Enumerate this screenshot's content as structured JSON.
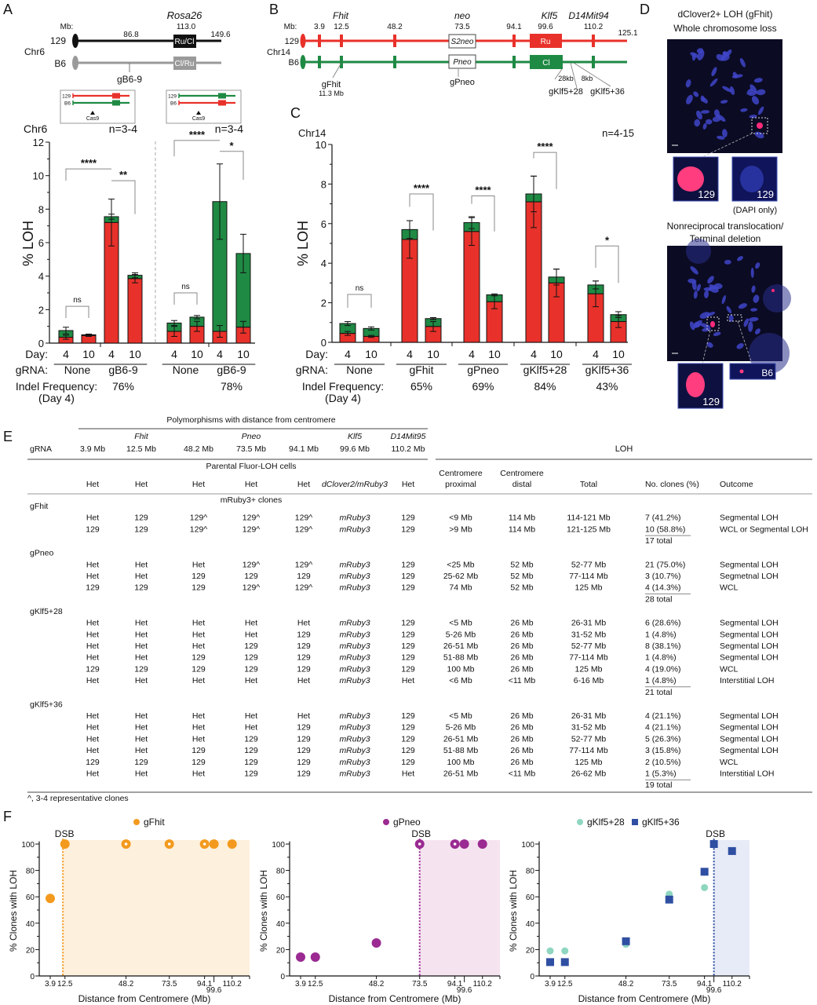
{
  "panel_labels": [
    "A",
    "B",
    "C",
    "D",
    "E",
    "F"
  ],
  "colors": {
    "red": "#e8312a",
    "green": "#1f8a44",
    "grey": "#9a9a9a",
    "gFhit": "#f39a1e",
    "gPneo": "#9b2a92",
    "gKlf5_28": "#8fd6c0",
    "gKlf5_36": "#2f4fa2"
  },
  "panel_a_diagram": {
    "gene": "Rosa26",
    "gene_pos": "113.0",
    "mb_label": "Mb:",
    "chr": "Chr6",
    "alleles": [
      "129",
      "B6"
    ],
    "pos_labels": [
      "86.8",
      "149.6"
    ],
    "boxes": [
      "Ru/Cl",
      "Cl/Ru"
    ],
    "grna": "gB6-9",
    "insets": [
      {
        "alleles": [
          "129",
          "B6"
        ],
        "top_color": "red",
        "bottom_color": "green",
        "cut_label": "Cas9"
      },
      {
        "alleles": [
          "129",
          "B6"
        ],
        "top_color": "green",
        "bottom_color": "red",
        "cut_label": "Cas9"
      }
    ]
  },
  "panel_b_diagram": {
    "genes": [
      "Fhit",
      "neo",
      "Klf5",
      "D14Mit94"
    ],
    "mb_label": "Mb:",
    "positions": [
      "3.9",
      "12.5",
      "48.2",
      "73.5",
      "94.1",
      "99.6",
      "110.2",
      "125.1"
    ],
    "chr": "Chr14",
    "alleles": [
      "129",
      "B6"
    ],
    "boxes": {
      "neo_129": "S2neo",
      "neo_b6": "Pneo",
      "klf5_129": "Ru",
      "klf5_b6": "Cl"
    },
    "grnas": {
      "gfhit": "gFhit",
      "gfhit_pos": "11.3 Mb",
      "gpneo": "gPneo",
      "gklf28": "gKlf5+28",
      "gklf36": "gKlf5+36"
    },
    "distances": [
      "28kb",
      "8kb"
    ]
  },
  "panel_d": {
    "title1": "dClover2+ LOH (gFhit)",
    "title2": "Whole chromosome loss",
    "inset_labels_1": [
      "129",
      "129"
    ],
    "dapi_note": "(DAPI only)",
    "title3": "Nonreciprocal translocation/",
    "title4": "Terminal deletion",
    "inset_labels_2": [
      "129",
      "B6"
    ]
  },
  "chart_data": [
    {
      "id": "A",
      "type": "bar",
      "stacked": true,
      "title": "Chr6",
      "ylabel": "% LOH",
      "ylim": [
        0,
        12
      ],
      "yticks": [
        0,
        2,
        4,
        6,
        8,
        10,
        12
      ],
      "grid": false,
      "n_labels": [
        "n=3-4",
        "n=3-4"
      ],
      "row_labels": {
        "day": "Day:",
        "grna": "gRNA:",
        "indel": "Indel Frequency:",
        "indel_sub": "(Day 4)"
      },
      "bars": [
        {
          "day": "4",
          "red": 0.35,
          "red_err": 0.12,
          "total": 0.75,
          "total_err": 0.2
        },
        {
          "day": "10",
          "red": 0.45,
          "red_err": 0.05,
          "total": 0.5,
          "total_err": 0.04
        },
        {
          "day": "4",
          "red": 7.2,
          "red_err": 1.4,
          "total": 7.55,
          "total_err": 0.15
        },
        {
          "day": "10",
          "red": 3.85,
          "red_err": 0.25,
          "total": 4.05,
          "total_err": 0.15
        },
        {
          "day": "4",
          "red": 0.7,
          "red_err": 0.3,
          "total": 1.2,
          "total_err": 0.15
        },
        {
          "day": "10",
          "red": 1.0,
          "red_err": 0.3,
          "total": 1.55,
          "total_err": 0.1
        },
        {
          "day": "4",
          "red": 0.7,
          "red_err": 0.35,
          "total": 8.45,
          "total_err": 2.25
        },
        {
          "day": "10",
          "red": 0.95,
          "red_err": 0.35,
          "total": 5.35,
          "total_err": 1.15
        }
      ],
      "groups": [
        {
          "gRNA": "None",
          "bars": [
            0,
            1
          ],
          "indel": ""
        },
        {
          "gRNA": "gB6-9",
          "bars": [
            2,
            3
          ],
          "indel": "76%"
        },
        {
          "gRNA": "None",
          "bars": [
            4,
            5
          ],
          "indel": ""
        },
        {
          "gRNA": "gB6-9",
          "bars": [
            6,
            7
          ],
          "indel": "78%"
        }
      ],
      "brackets": [
        {
          "a": 0,
          "b": 1,
          "top": 2.2,
          "l": 1.5,
          "r": 1.5,
          "label": "ns"
        },
        {
          "a": 0,
          "b": 2,
          "top": 10.4,
          "l": 9.7,
          "r": 10.4,
          "label": "****"
        },
        {
          "a": 2,
          "b": 3,
          "top": 9.7,
          "l": 9.7,
          "r": 7.7,
          "label": "**"
        },
        {
          "a": 4,
          "b": 5,
          "top": 3.0,
          "l": 2.3,
          "r": 2.3,
          "label": "ns"
        },
        {
          "a": 4,
          "b": 6,
          "top": 12.1,
          "l": 11.15,
          "r": 12.1,
          "label": "****"
        },
        {
          "a": 6,
          "b": 7,
          "top": 11.45,
          "l": 11.45,
          "r": 9.75,
          "label": "*"
        }
      ]
    },
    {
      "id": "C",
      "type": "bar",
      "stacked": true,
      "title": "Chr14",
      "ylabel": "% LOH",
      "ylim": [
        0,
        10
      ],
      "yticks": [
        0,
        2,
        4,
        6,
        8,
        10
      ],
      "grid": false,
      "n_labels": [
        "n=4-15"
      ],
      "row_labels": {
        "day": "Day:",
        "grna": "gRNA:",
        "indel": "Indel Frequency:",
        "indel_sub": "(Day 4)"
      },
      "bars": [
        {
          "day": "4",
          "red": 0.45,
          "red_err": 0.1,
          "total": 0.95,
          "total_err": 0.1
        },
        {
          "day": "10",
          "red": 0.3,
          "red_err": 0.05,
          "total": 0.7,
          "total_err": 0.08
        },
        {
          "day": "4",
          "red": 5.2,
          "red_err": 0.95,
          "total": 5.7,
          "total_err": 0.45
        },
        {
          "day": "10",
          "red": 0.8,
          "red_err": 0.25,
          "total": 1.2,
          "total_err": 0.05
        },
        {
          "day": "4",
          "red": 5.6,
          "red_err": 0.7,
          "total": 6.05,
          "total_err": 0.3
        },
        {
          "day": "10",
          "red": 2.05,
          "red_err": 0.35,
          "total": 2.4,
          "total_err": 0.05
        },
        {
          "day": "4",
          "red": 7.1,
          "red_err": 1.3,
          "total": 7.5,
          "total_err": 0.9
        },
        {
          "day": "10",
          "red": 3.0,
          "red_err": 0.7,
          "total": 3.3,
          "total_err": 0.4
        },
        {
          "day": "4",
          "red": 2.45,
          "red_err": 0.65,
          "total": 2.9,
          "total_err": 0.2
        },
        {
          "day": "10",
          "red": 1.05,
          "red_err": 0.3,
          "total": 1.4,
          "total_err": 0.15
        }
      ],
      "groups": [
        {
          "gRNA": "None",
          "bars": [
            0,
            1
          ],
          "indel": ""
        },
        {
          "gRNA": "gFhit",
          "bars": [
            2,
            3
          ],
          "indel": "65%"
        },
        {
          "gRNA": "gPneo",
          "bars": [
            4,
            5
          ],
          "indel": "69%"
        },
        {
          "gRNA": "gKlf5+28",
          "bars": [
            6,
            7
          ],
          "indel": "84%"
        },
        {
          "gRNA": "gKlf5+36",
          "bars": [
            8,
            9
          ],
          "indel": "43%"
        }
      ],
      "brackets": [
        {
          "a": 0,
          "b": 1,
          "top": 2.42,
          "l": 1.75,
          "r": 1.75,
          "label": "ns"
        },
        {
          "a": 2,
          "b": 3,
          "top": 7.5,
          "l": 6.85,
          "r": 5.65,
          "label": "****"
        },
        {
          "a": 4,
          "b": 5,
          "top": 7.4,
          "l": 7.0,
          "r": 5.6,
          "label": "****"
        },
        {
          "a": 6,
          "b": 7,
          "top": 9.6,
          "l": 9.3,
          "r": 7.75,
          "label": "****"
        },
        {
          "a": 8,
          "b": 9,
          "top": 4.87,
          "l": 3.77,
          "r": 3.0,
          "label": "*"
        }
      ]
    },
    {
      "id": "F1",
      "type": "scatter",
      "xlabel": "Distance from Centromere (Mb)",
      "ylabel": "% Clones with LOH",
      "ylim": [
        0,
        100
      ],
      "yticks": [
        0,
        20,
        40,
        60,
        80,
        100
      ],
      "xticks": [
        3.9,
        12.5,
        48.2,
        73.5,
        94.1,
        99.6,
        110.2
      ],
      "dsb": 11.3,
      "dsb_label": "DSB",
      "shade": "#fdf0dc",
      "legend": "top",
      "series": [
        {
          "name": "gFhit",
          "color": "#f39a1e",
          "marker": "circle",
          "points": [
            [
              3.9,
              58.8
            ],
            [
              12.5,
              100
            ],
            [
              48.2,
              100
            ],
            [
              73.5,
              100
            ],
            [
              94.1,
              100
            ],
            [
              99.6,
              100
            ],
            [
              110.2,
              100
            ]
          ],
          "open_at": [
            48.2,
            73.5,
            94.1
          ]
        }
      ]
    },
    {
      "id": "F2",
      "type": "scatter",
      "xlabel": "Distance from Centromere (Mb)",
      "ylabel": "% Clones with LOH",
      "ylim": [
        0,
        100
      ],
      "yticks": [
        0,
        20,
        40,
        60,
        80,
        100
      ],
      "xticks": [
        3.9,
        12.5,
        48.2,
        73.5,
        94.1,
        99.6,
        110.2
      ],
      "dsb": 73.5,
      "dsb_label": "DSB",
      "shade": "#f5e4f0",
      "legend": "top",
      "series": [
        {
          "name": "gPneo",
          "color": "#9b2a92",
          "marker": "circle",
          "points": [
            [
              3.9,
              14.3
            ],
            [
              12.5,
              14.3
            ],
            [
              48.2,
              25
            ],
            [
              73.5,
              100
            ],
            [
              94.1,
              100
            ],
            [
              99.6,
              100
            ],
            [
              110.2,
              100
            ]
          ],
          "open_at": [
            73.5,
            94.1
          ]
        }
      ]
    },
    {
      "id": "F3",
      "type": "scatter",
      "xlabel": "Distance from Centromere (Mb)",
      "ylabel": "% Clones with LOH",
      "ylim": [
        0,
        100
      ],
      "yticks": [
        0,
        20,
        40,
        60,
        80,
        100
      ],
      "xticks": [
        3.9,
        12.5,
        48.2,
        73.5,
        94.1,
        99.6,
        110.2
      ],
      "dsb": 99.6,
      "dsb_label": "DSB",
      "shade": "#e7ebf7",
      "legend": "top",
      "series": [
        {
          "name": "gKlf5+28",
          "color": "#8fd6c0",
          "marker": "circle",
          "points": [
            [
              3.9,
              19
            ],
            [
              12.5,
              19
            ],
            [
              48.2,
              24
            ],
            [
              73.5,
              62
            ],
            [
              94.1,
              67
            ],
            [
              99.6,
              100
            ],
            [
              110.2,
              95
            ]
          ],
          "open_at": []
        },
        {
          "name": "gKlf5+36",
          "color": "#2f4fa2",
          "marker": "square",
          "points": [
            [
              3.9,
              10.5
            ],
            [
              12.5,
              10.5
            ],
            [
              48.2,
              26.3
            ],
            [
              73.5,
              57.9
            ],
            [
              94.1,
              79
            ],
            [
              99.6,
              100
            ],
            [
              110.2,
              94.7
            ]
          ],
          "open_at": []
        }
      ]
    }
  ],
  "table": {
    "super_header": "Polymorphisms with distance from centromere",
    "gene_labels": [
      "",
      "Fhit",
      "",
      "Pneo",
      "",
      "Klf5",
      "D14Mit95"
    ],
    "grna_header": "gRNA",
    "positions": [
      "3.9 Mb",
      "12.5 Mb",
      "48.2 Mb",
      "73.5 Mb",
      "94.1 Mb",
      "99.6 Mb",
      "110.2 Mb"
    ],
    "loh_header": "LOH",
    "parental_label": "Parental Fluor-LOH cells",
    "parental": [
      "Het",
      "Het",
      "Het",
      "Het",
      "Het",
      "dClover2/mRuby3",
      "Het"
    ],
    "loh_columns": [
      [
        "Centromere",
        "proximal"
      ],
      [
        "Centromere",
        "distal"
      ],
      [
        "Total"
      ],
      [
        "No. clones (%)"
      ],
      [
        "Outcome"
      ]
    ],
    "clones_label": "mRuby3+ clones",
    "groups": [
      {
        "gRNA": "gFhit",
        "total": "17 total",
        "rows": [
          [
            "Het",
            "129",
            "129^",
            "129^",
            "129^",
            "mRuby3",
            "129",
            "<9 Mb",
            "114 Mb",
            "114-121 Mb",
            "7 (41.2%)",
            "Segmental LOH"
          ],
          [
            "129",
            "129",
            "129^",
            "129^",
            "129^",
            "mRuby3",
            "129",
            ">9 Mb",
            "114 Mb",
            "121-125 Mb",
            "10 (58.8%)",
            "WCL or Segmental LOH"
          ]
        ]
      },
      {
        "gRNA": "gPneo",
        "total": "28 total",
        "rows": [
          [
            "Het",
            "Het",
            "Het",
            "129^",
            "129^",
            "mRuby3",
            "129",
            "<25 Mb",
            "52 Mb",
            "52-77 Mb",
            "21 (75.0%)",
            "Segmental LOH"
          ],
          [
            "Het",
            "Het",
            "129",
            "129",
            "129",
            "mRuby3",
            "129",
            "25-62 Mb",
            "52 Mb",
            "77-114 Mb",
            "3 (10.7%)",
            "Segmetnal LOH"
          ],
          [
            "129",
            "129",
            "129",
            "129^",
            "129^",
            "mRuby3",
            "129",
            "74 Mb",
            "52 Mb",
            "125 Mb",
            "4 (14.3%)",
            "WCL"
          ]
        ]
      },
      {
        "gRNA": "gKlf5+28",
        "total": "21 total",
        "rows": [
          [
            "Het",
            "Het",
            "Het",
            "Het",
            "Het",
            "mRuby3",
            "129",
            "<5 Mb",
            "26 Mb",
            "26-31 Mb",
            "6 (28.6%)",
            "Segmental LOH"
          ],
          [
            "Het",
            "Het",
            "Het",
            "Het",
            "129",
            "mRuby3",
            "129",
            "5-26 Mb",
            "26 Mb",
            "31-52 Mb",
            "1 (4.8%)",
            "Segmental LOH"
          ],
          [
            "Het",
            "Het",
            "Het",
            "129",
            "129",
            "mRuby3",
            "129",
            "26-51 Mb",
            "26 Mb",
            "52-77 Mb",
            "8 (38.1%)",
            "Segmental LOH"
          ],
          [
            "Het",
            "Het",
            "129",
            "129",
            "129",
            "mRuby3",
            "129",
            "51-88 Mb",
            "26 Mb",
            "77-114 Mb",
            "1 (4.8%)",
            "Segmental LOH"
          ],
          [
            "129",
            "129",
            "129",
            "129",
            "129",
            "mRuby3",
            "129",
            "100 Mb",
            "26 Mb",
            "125 Mb",
            "4 (19.0%)",
            "WCL"
          ],
          [
            "Het",
            "Het",
            "Het",
            "Het",
            "Het",
            "mRuby3",
            "Het",
            "<6 Mb",
            "<11 Mb",
            "6-16 Mb",
            "1  (4.8%)",
            "Interstitial LOH"
          ]
        ]
      },
      {
        "gRNA": "gKlf5+36",
        "total": "19 total",
        "rows": [
          [
            "Het",
            "Het",
            "Het",
            "Het",
            "Het",
            "mRuby3",
            "129",
            "<5 Mb",
            "26 Mb",
            "26-31 Mb",
            "4 (21.1%)",
            "Segmental LOH"
          ],
          [
            "Het",
            "Het",
            "Het",
            "Het",
            "129",
            "mRuby3",
            "129",
            "5-26 Mb",
            "26 Mb",
            "31-52 Mb",
            "4 (21.1%)",
            "Segmental LOH"
          ],
          [
            "Het",
            "Het",
            "Het",
            "129",
            "129",
            "mRuby3",
            "129",
            "26-51 Mb",
            "26 Mb",
            "52-77 Mb",
            "5 (26.3%)",
            "Segmental LOH"
          ],
          [
            "Het",
            "Het",
            "129",
            "129",
            "129",
            "mRuby3",
            "129",
            "51-88 Mb",
            "26 Mb",
            "77-114 Mb",
            "3 (15.8%)",
            "Segmental LOH"
          ],
          [
            "129",
            "129",
            "129",
            "129",
            "129",
            "mRuby3",
            "129",
            "100 Mb",
            "26 Mb",
            "125 Mb",
            "2 (10.5%)",
            "WCL"
          ],
          [
            "Het",
            "Het",
            "Het",
            "129",
            "129",
            "mRuby3",
            "Het",
            "26-51 Mb",
            "<11 Mb",
            "26-62 Mb",
            "1 (5.3%)",
            "Interstitial LOH"
          ]
        ]
      }
    ],
    "footnote": "^, 3-4 representative clones"
  }
}
